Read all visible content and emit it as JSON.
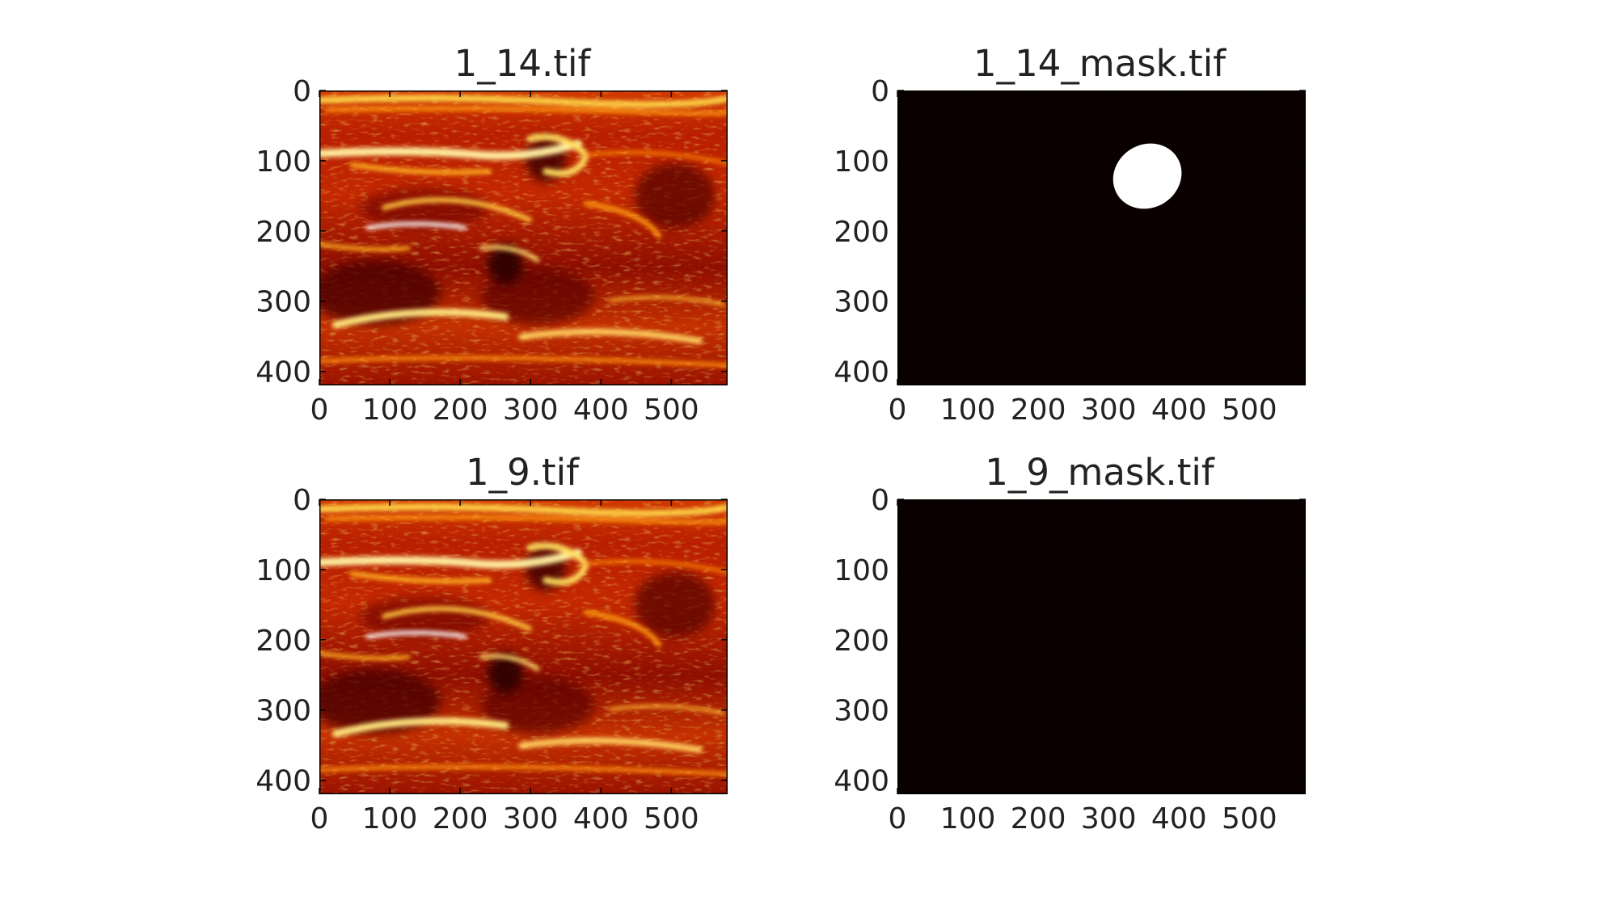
{
  "chart_data": [
    {
      "type": "heatmap",
      "title": "1_14.tif",
      "colormap": "hot",
      "xticks": [
        "0",
        "100",
        "200",
        "300",
        "400",
        "500"
      ],
      "yticks": [
        "0",
        "100",
        "200",
        "300",
        "400"
      ],
      "xlim": [
        0,
        580
      ],
      "ylim": [
        420,
        0
      ],
      "content": "ultrasound"
    },
    {
      "type": "heatmap",
      "title": "1_14_mask.tif",
      "colormap": "hot",
      "xticks": [
        "0",
        "100",
        "200",
        "300",
        "400",
        "500"
      ],
      "yticks": [
        "0",
        "100",
        "200",
        "300",
        "400"
      ],
      "xlim": [
        0,
        580
      ],
      "ylim": [
        420,
        0
      ],
      "content": "mask",
      "mask_region": {
        "cx": 355,
        "cy": 122,
        "rx": 50,
        "ry": 45,
        "rotate": -32
      }
    },
    {
      "type": "heatmap",
      "title": "1_9.tif",
      "colormap": "hot",
      "xticks": [
        "0",
        "100",
        "200",
        "300",
        "400",
        "500"
      ],
      "yticks": [
        "0",
        "100",
        "200",
        "300",
        "400"
      ],
      "xlim": [
        0,
        580
      ],
      "ylim": [
        420,
        0
      ],
      "content": "ultrasound"
    },
    {
      "type": "heatmap",
      "title": "1_9_mask.tif",
      "colormap": "hot",
      "xticks": [
        "0",
        "100",
        "200",
        "300",
        "400",
        "500"
      ],
      "yticks": [
        "0",
        "100",
        "200",
        "300",
        "400"
      ],
      "xlim": [
        0,
        580
      ],
      "ylim": [
        420,
        0
      ],
      "content": "mask"
    }
  ]
}
